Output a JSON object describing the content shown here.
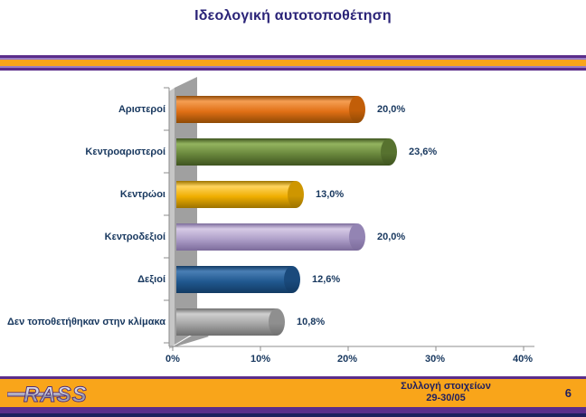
{
  "title": "Ιδεολογική αυτοτοποθέτηση",
  "chart_data": {
    "type": "bar",
    "orientation": "horizontal",
    "title": "Ιδεολογική αυτοτοποθέτηση",
    "categories": [
      "Αριστεροί",
      "Κεντροαριστεροί",
      "Κεντρώοι",
      "Κεντροδεξιοί",
      "Δεξιοί",
      "Δεν τοποθετήθηκαν στην κλίμακα"
    ],
    "values": [
      20.0,
      23.6,
      13.0,
      20.0,
      12.6,
      10.8
    ],
    "value_labels": [
      "20,0%",
      "23,6%",
      "13,0%",
      "20,0%",
      "12,6%",
      "10,8%"
    ],
    "bar_colors": [
      {
        "light": "#F59E53",
        "base": "#E06F15",
        "dark": "#8F4A05",
        "cap": "#C25E08"
      },
      {
        "light": "#93B45F",
        "base": "#69873C",
        "dark": "#3F5420",
        "cap": "#57722F"
      },
      {
        "light": "#FFD45E",
        "base": "#EFAE00",
        "dark": "#9C7300",
        "cap": "#CE9600"
      },
      {
        "light": "#D6CAE5",
        "base": "#AFA0C9",
        "dark": "#7C6B9B",
        "cap": "#9384B3"
      },
      {
        "light": "#4A7FB5",
        "base": "#20588F",
        "dark": "#123A63",
        "cap": "#1A4A7C"
      },
      {
        "light": "#CFCFCF",
        "base": "#A5A5A5",
        "dark": "#6F6F6F",
        "cap": "#8F8F8F"
      }
    ],
    "x_ticks": [
      "0%",
      "10%",
      "20%",
      "30%",
      "40%"
    ],
    "xlim": [
      0,
      40
    ],
    "xlabel": "",
    "ylabel": "",
    "grid": false,
    "legend": "none"
  },
  "footer": {
    "logo_text": "RASS",
    "note_line1": "Συλλογή στοιχείων",
    "note_line2": "29-30/05",
    "page_number": "6"
  },
  "colors": {
    "title_navy": "#2B2478",
    "label_navy": "#17375E",
    "accent_orange": "#F9A51A",
    "accent_purple": "#5B2D8B",
    "wall_gray": "#A0A0A0"
  }
}
